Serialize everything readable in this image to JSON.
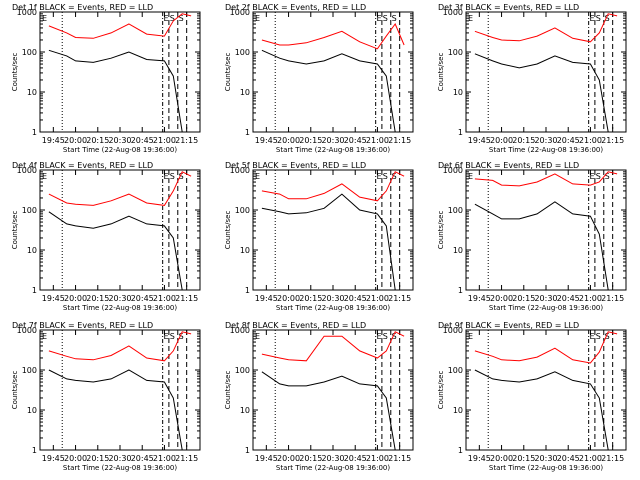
{
  "ylabel": "Counts/sec",
  "xlabel": "Start Time (22-Aug-08 19:36:00)",
  "xticks": [
    "19:45",
    "20:00",
    "20:15",
    "20:30",
    "20:45",
    "21:00",
    "21:15"
  ],
  "yticks": [
    "1",
    "10",
    "100",
    "1000"
  ],
  "letters": [
    "E",
    "S",
    "S"
  ],
  "colors": {
    "events": "#000000",
    "lld": "#ff0000"
  },
  "chart_data": [
    {
      "type": "line",
      "title": "Det 1f BLACK = Events, RED = LLD",
      "x": [
        19.7,
        19.9,
        20.0,
        20.2,
        20.4,
        20.6,
        20.8,
        21.0,
        21.1,
        21.2,
        21.3
      ],
      "series": [
        {
          "name": "Events",
          "values": [
            110,
            80,
            60,
            55,
            70,
            100,
            65,
            60,
            25,
            1,
            1
          ]
        },
        {
          "name": "LLD",
          "values": [
            450,
            300,
            230,
            220,
            300,
            500,
            280,
            250,
            600,
            900,
            800
          ]
        }
      ],
      "ylim": [
        1,
        1000
      ]
    },
    {
      "type": "line",
      "title": "Det 2f BLACK = Events, RED = LLD",
      "x": [
        19.7,
        19.9,
        20.0,
        20.2,
        20.4,
        20.6,
        20.8,
        21.0,
        21.1,
        21.2,
        21.3
      ],
      "series": [
        {
          "name": "Events",
          "values": [
            110,
            70,
            60,
            50,
            60,
            90,
            60,
            50,
            25,
            1,
            1
          ]
        },
        {
          "name": "LLD",
          "values": [
            200,
            150,
            150,
            170,
            230,
            330,
            180,
            120,
            250,
            500,
            150
          ]
        }
      ],
      "ylim": [
        1,
        1000
      ]
    },
    {
      "type": "line",
      "title": "Det 3f BLACK = Events, RED = LLD",
      "x": [
        19.7,
        19.9,
        20.0,
        20.2,
        20.4,
        20.6,
        20.8,
        21.0,
        21.1,
        21.2,
        21.3
      ],
      "series": [
        {
          "name": "Events",
          "values": [
            90,
            60,
            50,
            40,
            50,
            80,
            55,
            50,
            20,
            1,
            1
          ]
        },
        {
          "name": "LLD",
          "values": [
            330,
            230,
            200,
            190,
            250,
            400,
            220,
            180,
            300,
            900,
            800
          ]
        }
      ],
      "ylim": [
        1,
        1000
      ]
    },
    {
      "type": "line",
      "title": "Det 4f BLACK = Events, RED = LLD",
      "x": [
        19.7,
        19.9,
        20.0,
        20.2,
        20.4,
        20.6,
        20.8,
        21.0,
        21.1,
        21.2,
        21.3
      ],
      "series": [
        {
          "name": "Events",
          "values": [
            90,
            45,
            40,
            35,
            45,
            70,
            45,
            40,
            20,
            1,
            1
          ]
        },
        {
          "name": "LLD",
          "values": [
            250,
            150,
            140,
            130,
            170,
            250,
            150,
            130,
            300,
            900,
            700
          ]
        }
      ],
      "ylim": [
        1,
        1000
      ]
    },
    {
      "type": "line",
      "title": "Det 5f BLACK = Events, RED = LLD",
      "x": [
        19.7,
        19.9,
        20.0,
        20.2,
        20.4,
        20.6,
        20.8,
        21.0,
        21.1,
        21.2,
        21.3
      ],
      "series": [
        {
          "name": "Events",
          "values": [
            110,
            90,
            80,
            85,
            110,
            250,
            100,
            80,
            40,
            1,
            1
          ]
        },
        {
          "name": "LLD",
          "values": [
            300,
            250,
            190,
            190,
            260,
            450,
            210,
            170,
            300,
            900,
            700
          ]
        }
      ],
      "ylim": [
        1,
        1000
      ]
    },
    {
      "type": "line",
      "title": "Det 6f BLACK = Events, RED = LLD",
      "x": [
        19.7,
        19.9,
        20.0,
        20.2,
        20.4,
        20.6,
        20.8,
        21.0,
        21.1,
        21.2,
        21.3
      ],
      "series": [
        {
          "name": "Events",
          "values": [
            140,
            80,
            60,
            60,
            80,
            160,
            80,
            70,
            25,
            1,
            1
          ]
        },
        {
          "name": "LLD",
          "values": [
            600,
            550,
            420,
            400,
            500,
            800,
            450,
            420,
            500,
            900,
            800
          ]
        }
      ],
      "ylim": [
        1,
        1000
      ]
    },
    {
      "type": "line",
      "title": "Det 7f BLACK = Events, RED = LLD",
      "x": [
        19.7,
        19.9,
        20.0,
        20.2,
        20.4,
        20.6,
        20.8,
        21.0,
        21.1,
        21.2,
        21.3
      ],
      "series": [
        {
          "name": "Events",
          "values": [
            100,
            60,
            55,
            50,
            60,
            100,
            55,
            50,
            20,
            1,
            1
          ]
        },
        {
          "name": "LLD",
          "values": [
            300,
            220,
            190,
            180,
            230,
            400,
            200,
            170,
            300,
            900,
            800
          ]
        }
      ],
      "ylim": [
        1,
        1000
      ]
    },
    {
      "type": "line",
      "title": "Det 8f BLACK = Events, RED = LLD",
      "x": [
        19.7,
        19.9,
        20.0,
        20.2,
        20.4,
        20.6,
        20.8,
        21.0,
        21.1,
        21.2,
        21.3
      ],
      "series": [
        {
          "name": "Events",
          "values": [
            90,
            45,
            40,
            40,
            50,
            70,
            45,
            40,
            20,
            1,
            1
          ]
        },
        {
          "name": "LLD",
          "values": [
            250,
            200,
            180,
            170,
            700,
            700,
            300,
            200,
            300,
            900,
            700
          ]
        }
      ],
      "ylim": [
        1,
        1000
      ]
    },
    {
      "type": "line",
      "title": "Det 9f BLACK = Events, RED = LLD",
      "x": [
        19.7,
        19.9,
        20.0,
        20.2,
        20.4,
        20.6,
        20.8,
        21.0,
        21.1,
        21.2,
        21.3
      ],
      "series": [
        {
          "name": "Events",
          "values": [
            100,
            60,
            55,
            50,
            60,
            90,
            55,
            45,
            20,
            1,
            1
          ]
        },
        {
          "name": "LLD",
          "values": [
            300,
            220,
            180,
            170,
            210,
            350,
            180,
            150,
            280,
            900,
            800
          ]
        }
      ],
      "ylim": [
        1,
        1000
      ]
    }
  ]
}
